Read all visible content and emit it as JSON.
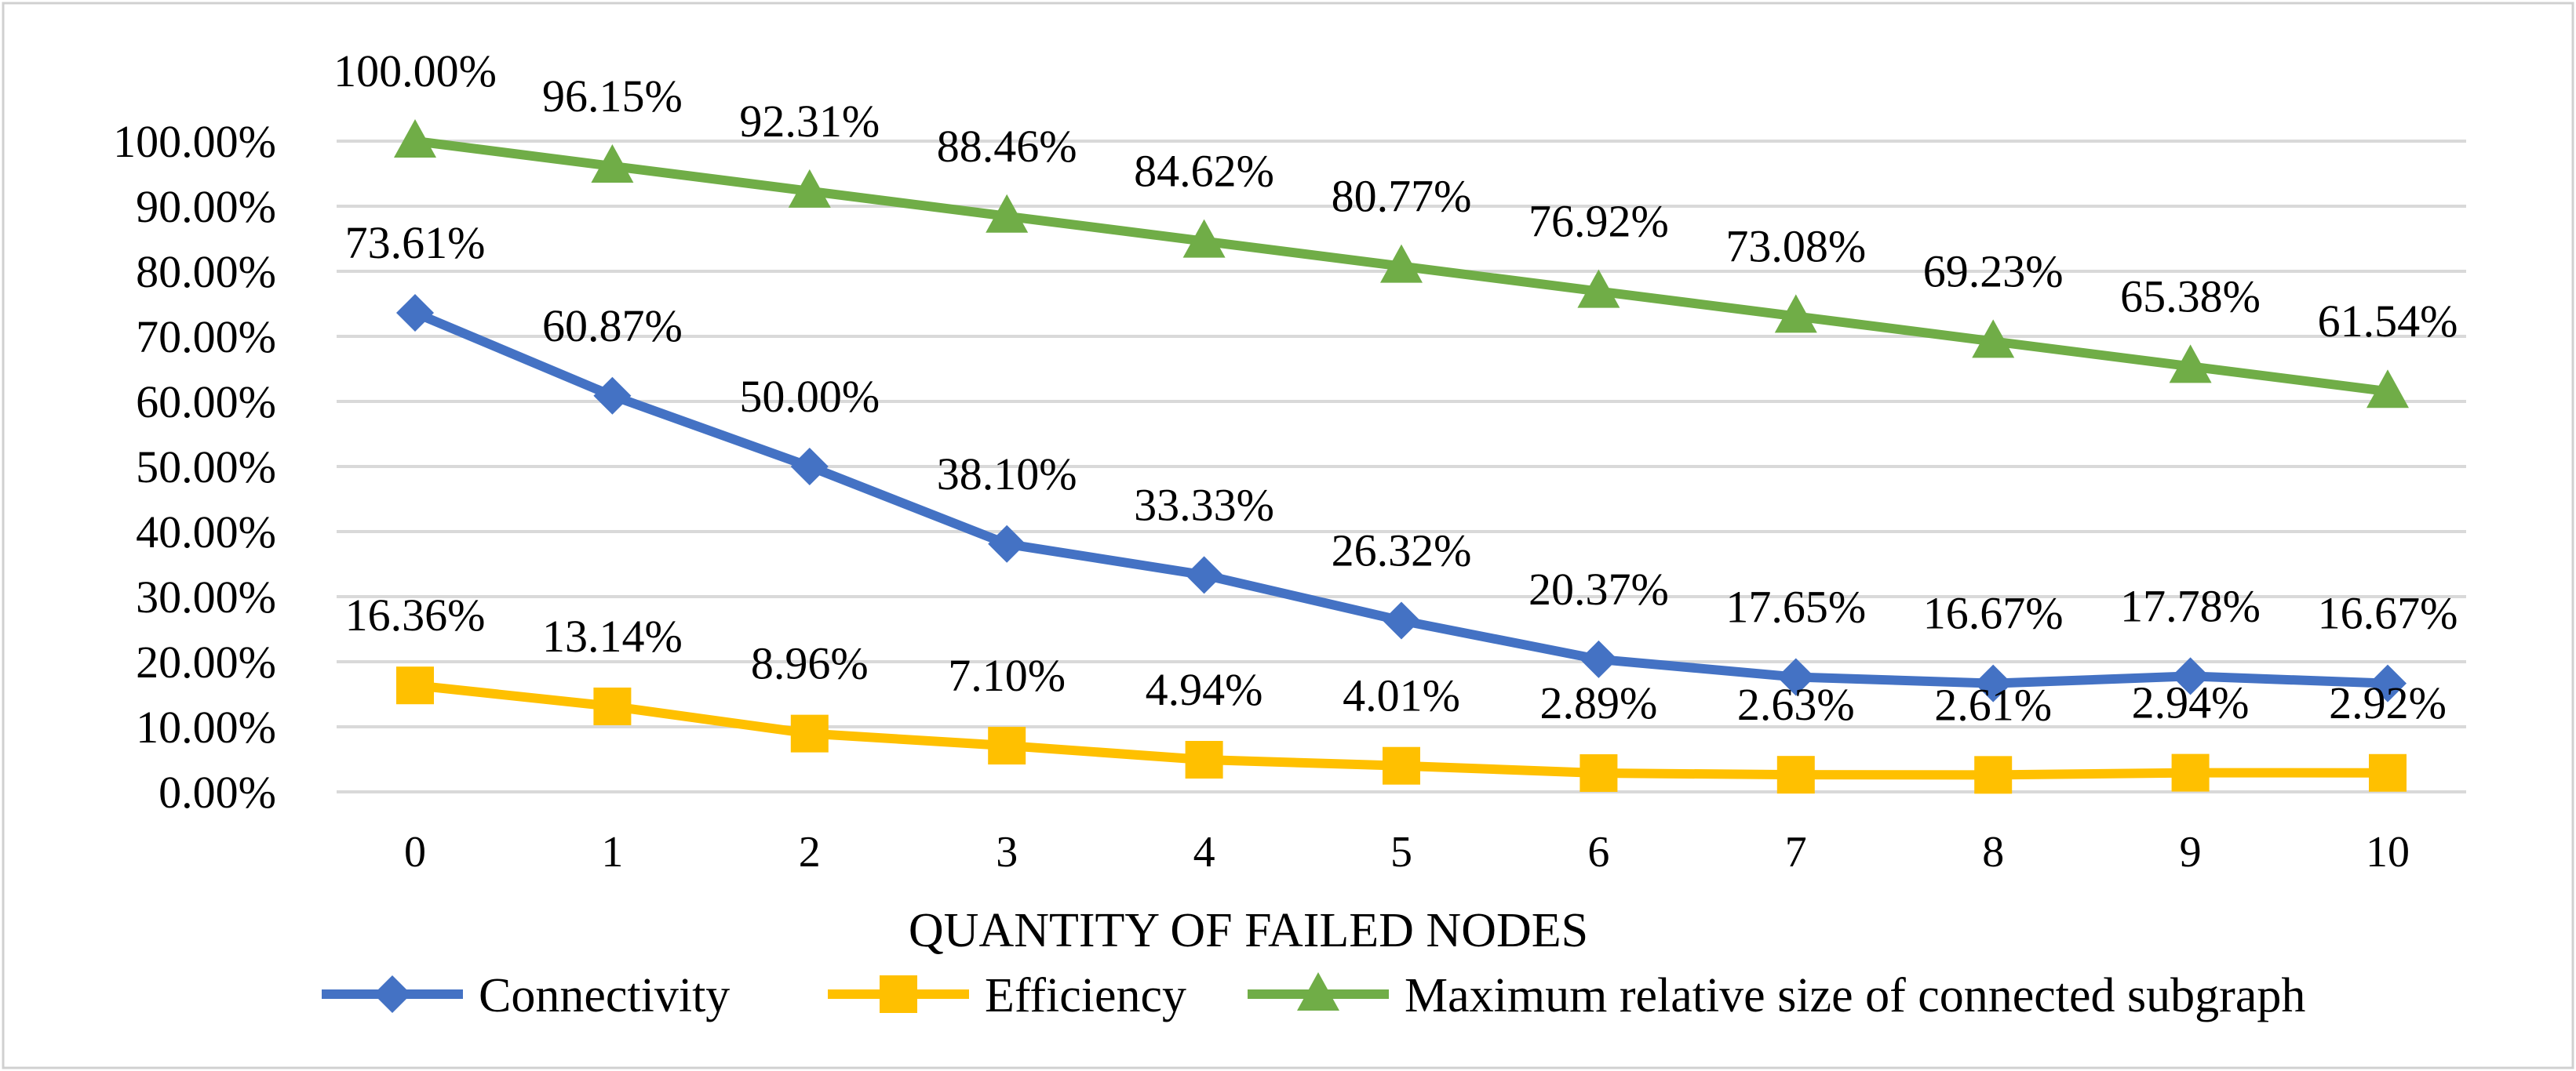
{
  "chart_data": {
    "type": "line",
    "title": "",
    "xlabel": "QUANTITY OF FAILED NODES",
    "ylabel": "",
    "x": [
      0,
      1,
      2,
      3,
      4,
      5,
      6,
      7,
      8,
      9,
      10
    ],
    "x_tick_labels": [
      "0",
      "1",
      "2",
      "3",
      "4",
      "5",
      "6",
      "7",
      "8",
      "9",
      "10"
    ],
    "ylim": [
      0,
      1
    ],
    "y_ticks": [
      0,
      0.1,
      0.2,
      0.3,
      0.4,
      0.5,
      0.6,
      0.7,
      0.8,
      0.9,
      1.0
    ],
    "y_tick_labels": [
      "0.00%",
      "10.00%",
      "20.00%",
      "30.00%",
      "40.00%",
      "50.00%",
      "60.00%",
      "70.00%",
      "80.00%",
      "90.00%",
      "100.00%"
    ],
    "grid": true,
    "legend_position": "bottom",
    "series": [
      {
        "name": "Connectivity",
        "color": "#4472C4",
        "marker": "diamond",
        "values": [
          0.7361,
          0.6087,
          0.5,
          0.381,
          0.3333,
          0.2632,
          0.2037,
          0.1765,
          0.1667,
          0.1778,
          0.1667
        ],
        "labels": [
          "73.61%",
          "60.87%",
          "50.00%",
          "38.10%",
          "33.33%",
          "26.32%",
          "20.37%",
          "17.65%",
          "16.67%",
          "17.78%",
          "16.67%"
        ]
      },
      {
        "name": "Efficiency",
        "color": "#FFC000",
        "marker": "square",
        "values": [
          0.1636,
          0.1314,
          0.0896,
          0.071,
          0.0494,
          0.0401,
          0.0289,
          0.0263,
          0.0261,
          0.0294,
          0.0292
        ],
        "labels": [
          "16.36%",
          "13.14%",
          "8.96%",
          "7.10%",
          "4.94%",
          "4.01%",
          "2.89%",
          "2.63%",
          "2.61%",
          "2.94%",
          "2.92%"
        ]
      },
      {
        "name": "Maximum relative size of connected subgraph",
        "color": "#70AD47",
        "marker": "triangle",
        "values": [
          1.0,
          0.9615,
          0.9231,
          0.8846,
          0.8462,
          0.8077,
          0.7692,
          0.7308,
          0.6923,
          0.6538,
          0.6154
        ],
        "labels": [
          "100.00%",
          "96.15%",
          "92.31%",
          "88.46%",
          "84.62%",
          "80.77%",
          "76.92%",
          "73.08%",
          "69.23%",
          "65.38%",
          "61.54%"
        ]
      }
    ]
  }
}
